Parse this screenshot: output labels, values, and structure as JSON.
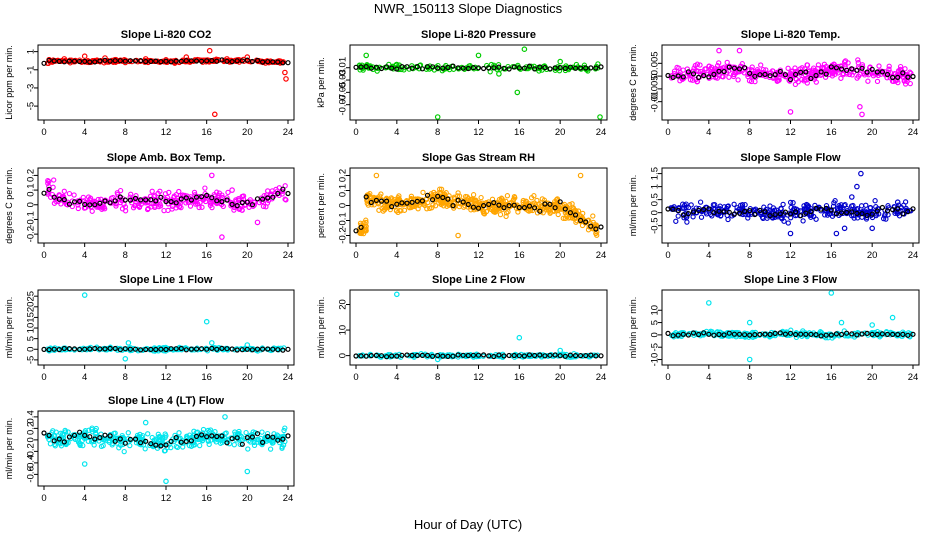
{
  "page": {
    "title": "NWR_150113  Slope Diagnostics",
    "xlabel": "Hour of Day (UTC)"
  },
  "chart_data": [
    {
      "type": "scatter",
      "title": "Slope Li-820 CO2",
      "ylabel": "Licor ppm per min.",
      "color": "#ff0000",
      "xlim": [
        0,
        24
      ],
      "xticks": [
        0,
        4,
        8,
        12,
        16,
        20,
        24
      ],
      "ylim": [
        -6.2,
        1.4
      ],
      "yticks": [
        1,
        -1,
        -3,
        -5
      ],
      "series": [
        {
          "values": [
            [
              0.5,
              0.1
            ],
            [
              2,
              0.2
            ],
            [
              4,
              0.5
            ],
            [
              6,
              0.3
            ],
            [
              8,
              -0.2
            ],
            [
              10,
              0.2
            ],
            [
              12,
              0.1
            ],
            [
              14,
              0.4
            ],
            [
              16.3,
              1.1
            ],
            [
              16.8,
              -5.9
            ],
            [
              18,
              0.2
            ],
            [
              20,
              0.4
            ],
            [
              22,
              -0.1
            ],
            [
              23.7,
              -1.3
            ],
            [
              23.8,
              -2.0
            ]
          ],
          "density": 1.0
        }
      ],
      "median_values": [
        [
          0.5,
          0.0
        ],
        [
          4,
          -0.1
        ],
        [
          8,
          0.0
        ],
        [
          12,
          -0.1
        ],
        [
          16,
          0.0
        ],
        [
          20,
          0.0
        ],
        [
          24,
          -0.2
        ]
      ]
    },
    {
      "type": "scatter",
      "title": "Slope Li-820 Pressure",
      "ylabel": "kPa per min.",
      "color": "#00cc00",
      "xlim": [
        0,
        24
      ],
      "xticks": [
        0,
        4,
        8,
        12,
        16,
        20,
        24
      ],
      "ylim": [
        -0.09,
        0.022
      ],
      "yticks": [
        -0.01,
        -0.03,
        -0.05,
        -0.07
      ],
      "series": [
        {
          "values": [
            [
              1,
              0.01
            ],
            [
              4,
              -0.005
            ],
            [
              8,
              -0.09
            ],
            [
              12,
              0.01
            ],
            [
              14,
              -0.02
            ],
            [
              15.8,
              -0.05
            ],
            [
              16.5,
              0.02
            ],
            [
              20,
              0.0
            ],
            [
              23.9,
              -0.09
            ]
          ],
          "density": 0.6
        }
      ],
      "median_values": [
        [
          1,
          -0.01
        ],
        [
          4,
          -0.01
        ],
        [
          8,
          -0.01
        ],
        [
          12,
          -0.01
        ],
        [
          16,
          -0.01
        ],
        [
          20,
          -0.01
        ],
        [
          24,
          -0.01
        ]
      ]
    },
    {
      "type": "scatter",
      "title": "Slope Li-820 Temp.",
      "ylabel": "degrees C per min.",
      "color": "#ff00ff",
      "xlim": [
        0,
        24
      ],
      "xticks": [
        0,
        4,
        8,
        12,
        16,
        20,
        24
      ],
      "ylim": [
        -0.016,
        0.011
      ],
      "yticks": [
        0.005,
        0.0,
        -0.005,
        -0.01
      ],
      "series": [
        {
          "values": [
            [
              5,
              0.01
            ],
            [
              7,
              0.01
            ],
            [
              18.8,
              -0.012
            ],
            [
              19,
              -0.015
            ],
            [
              12,
              -0.014
            ]
          ],
          "density": 1.4
        }
      ],
      "median_values": [
        [
          1,
          0.0
        ],
        [
          6,
          0.002
        ],
        [
          12,
          0.0
        ],
        [
          18,
          0.003
        ],
        [
          23,
          0.0
        ]
      ]
    },
    {
      "type": "scatter",
      "title": "Slope Amb. Box Temp.",
      "ylabel": "degrees C per min.",
      "color": "#ff00ff",
      "xlim": [
        0,
        24
      ],
      "xticks": [
        0,
        4,
        8,
        12,
        16,
        20,
        24
      ],
      "ylim": [
        -0.24,
        0.23
      ],
      "yticks": [
        0.2,
        0.1,
        0.0,
        -0.1,
        -0.2
      ],
      "series": [
        {
          "values": [
            [
              16.5,
              0.2
            ],
            [
              17.5,
              -0.22
            ],
            [
              18.5,
              0.1
            ],
            [
              21,
              -0.12
            ]
          ],
          "density": 1.2
        }
      ],
      "median_values": [
        [
          1,
          0.05
        ],
        [
          4,
          0.0
        ],
        [
          8,
          0.03
        ],
        [
          12,
          0.02
        ],
        [
          16,
          0.05
        ],
        [
          20,
          0.0
        ],
        [
          24,
          0.1
        ]
      ]
    },
    {
      "type": "scatter",
      "title": "Slope Gas Stream RH",
      "ylabel": "percent per min.",
      "color": "#ffa500",
      "xlim": [
        0,
        24
      ],
      "xticks": [
        0,
        4,
        8,
        12,
        16,
        20,
        24
      ],
      "ylim": [
        -0.23,
        0.23
      ],
      "yticks": [
        0.2,
        0.1,
        0.0,
        -0.1,
        -0.2
      ],
      "series": [
        {
          "values": [
            [
              2,
              0.2
            ],
            [
              10,
              -0.2
            ],
            [
              22,
              0.2
            ]
          ],
          "density": 2.0
        }
      ],
      "median_values": [
        [
          1,
          0.05
        ],
        [
          4,
          0.0
        ],
        [
          8,
          0.05
        ],
        [
          12,
          0.0
        ],
        [
          16,
          0.0
        ],
        [
          20,
          0.0
        ],
        [
          23.5,
          -0.15
        ]
      ]
    },
    {
      "type": "scatter",
      "title": "Slope Sample Flow",
      "ylabel": "ml/min per min.",
      "color": "#0000cc",
      "xlim": [
        0,
        24
      ],
      "xticks": [
        0,
        4,
        8,
        12,
        16,
        20,
        24
      ],
      "ylim": [
        -1.05,
        1.6
      ],
      "yticks": [
        1.5,
        1.0,
        0.5,
        0.0,
        -0.5
      ],
      "series": [
        {
          "values": [
            [
              18.9,
              1.5
            ],
            [
              18.5,
              1.0
            ],
            [
              18,
              0.6
            ],
            [
              17.3,
              -0.6
            ],
            [
              16.5,
              -0.8
            ],
            [
              12,
              -0.8
            ],
            [
              20,
              -0.6
            ],
            [
              22.5,
              0.4
            ]
          ],
          "density": 1.2
        }
      ],
      "median_values": [
        [
          1,
          0.0
        ],
        [
          4,
          0.1
        ],
        [
          8,
          0.0
        ],
        [
          12,
          0.0
        ],
        [
          16,
          0.1
        ],
        [
          20,
          0.0
        ],
        [
          24,
          0.1
        ]
      ]
    },
    {
      "type": "scatter",
      "title": "Slope Line 1 Flow",
      "ylabel": "ml/min per min.",
      "color": "#00e5ee",
      "xlim": [
        0,
        24
      ],
      "xticks": [
        0,
        4,
        8,
        12,
        16,
        20,
        24
      ],
      "ylim": [
        -6,
        26.5
      ],
      "yticks": [
        25,
        20,
        15,
        10,
        5,
        0,
        -5
      ],
      "series": [
        {
          "values": [
            [
              4,
              25.5
            ],
            [
              16,
              13
            ],
            [
              8,
              -4.5
            ],
            [
              8.3,
              3
            ],
            [
              16.5,
              3
            ],
            [
              20,
              2
            ]
          ],
          "density": 0.7
        }
      ],
      "median_values": [
        [
          1,
          0.0
        ],
        [
          4,
          0.2
        ],
        [
          8,
          0.0
        ],
        [
          12,
          0.0
        ],
        [
          16,
          0.2
        ],
        [
          20,
          0.0
        ],
        [
          24,
          0.0
        ]
      ]
    },
    {
      "type": "scatter",
      "title": "Slope Line 2 Flow",
      "ylabel": "ml/min per min.",
      "color": "#00e5ee",
      "xlim": [
        0,
        24
      ],
      "xticks": [
        0,
        4,
        8,
        12,
        16,
        20,
        24
      ],
      "ylim": [
        -2.5,
        24.5
      ],
      "yticks": [
        20,
        10,
        0
      ],
      "series": [
        {
          "values": [
            [
              4,
              24
            ],
            [
              16,
              7
            ],
            [
              8,
              -1.5
            ],
            [
              20,
              2
            ]
          ],
          "density": 0.7
        }
      ],
      "median_values": [
        [
          1,
          0.0
        ],
        [
          4,
          0.0
        ],
        [
          8,
          0.0
        ],
        [
          12,
          0.0
        ],
        [
          16,
          0.0
        ],
        [
          20,
          0.0
        ],
        [
          24,
          0.0
        ]
      ]
    },
    {
      "type": "scatter",
      "title": "Slope Line 3 Flow",
      "ylabel": "ml/min per min.",
      "color": "#00e5ee",
      "xlim": [
        0,
        24
      ],
      "xticks": [
        0,
        4,
        8,
        12,
        16,
        20,
        24
      ],
      "ylim": [
        -11,
        17
      ],
      "yticks": [
        10,
        5,
        0,
        -5,
        -10
      ],
      "series": [
        {
          "values": [
            [
              4,
              13
            ],
            [
              16,
              17
            ],
            [
              8,
              -10
            ],
            [
              8,
              5
            ],
            [
              17,
              5
            ],
            [
              22,
              7
            ],
            [
              20,
              4
            ]
          ],
          "density": 1.0
        }
      ],
      "median_values": [
        [
          1,
          0.0
        ],
        [
          4,
          0.5
        ],
        [
          8,
          0.0
        ],
        [
          12,
          0.5
        ],
        [
          16,
          0.0
        ],
        [
          20,
          0.5
        ],
        [
          24,
          0.0
        ]
      ]
    },
    {
      "type": "scatter",
      "title": "Slope Line 4 (LT) Flow",
      "ylabel": "ml/min per min.",
      "color": "#00e5ee",
      "xlim": [
        0,
        24
      ],
      "xticks": [
        0,
        4,
        8,
        12,
        16,
        20,
        24
      ],
      "ylim": [
        -0.75,
        0.45
      ],
      "yticks": [
        0.4,
        0.2,
        0.0,
        -0.2,
        -0.4,
        -0.6
      ],
      "series": [
        {
          "values": [
            [
              12,
              -0.72
            ],
            [
              4,
              -0.42
            ],
            [
              20,
              -0.55
            ],
            [
              17.8,
              0.4
            ],
            [
              10,
              0.3
            ]
          ],
          "density": 1.4
        }
      ],
      "median_values": [
        [
          1,
          0.0
        ],
        [
          4,
          0.05
        ],
        [
          8,
          0.0
        ],
        [
          12,
          -0.05
        ],
        [
          16,
          0.05
        ],
        [
          20,
          0.0
        ],
        [
          24,
          0.05
        ]
      ]
    }
  ]
}
